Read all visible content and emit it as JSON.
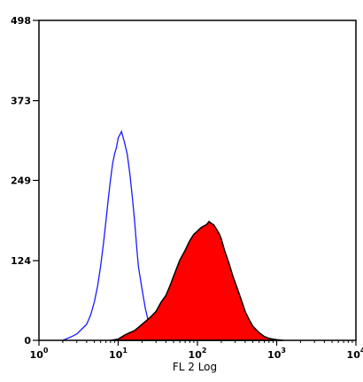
{
  "chart_data": {
    "type": "area",
    "title": "",
    "xlabel": "FL 2 Log",
    "ylabel": "",
    "x_scale": "log",
    "xlim": [
      1,
      10000
    ],
    "ylim": [
      0,
      498
    ],
    "x_ticks": [
      {
        "value": 1,
        "base": "10",
        "exp": "0"
      },
      {
        "value": 10,
        "base": "10",
        "exp": "1"
      },
      {
        "value": 100,
        "base": "10",
        "exp": "2"
      },
      {
        "value": 1000,
        "base": "10",
        "exp": "3"
      },
      {
        "value": 10000,
        "base": "10",
        "exp": "4"
      }
    ],
    "y_ticks": [
      0,
      124,
      249,
      373,
      498
    ],
    "y_tick_labels": [
      "0",
      "124",
      "249",
      "373",
      "498"
    ],
    "grid": false,
    "legend": "none",
    "series": [
      {
        "style": "outline",
        "color": "#1a1aff",
        "x": [
          2.0,
          2.5,
          3.0,
          3.5,
          4.0,
          4.5,
          5.0,
          5.5,
          6.0,
          6.5,
          7.0,
          7.5,
          8.0,
          8.5,
          9.0,
          9.5,
          10.0,
          11.0,
          12.0,
          13.0,
          14.0,
          15.0,
          16.0,
          17.0,
          18.0,
          20.0,
          22.0,
          24.0,
          26.0,
          28.0,
          30.0,
          33.0,
          36.0,
          40.0
        ],
        "y": [
          0,
          5,
          10,
          18,
          25,
          40,
          60,
          85,
          115,
          150,
          185,
          220,
          250,
          275,
          290,
          300,
          315,
          325,
          308,
          290,
          260,
          225,
          190,
          150,
          115,
          80,
          50,
          30,
          18,
          10,
          5,
          3,
          1,
          0
        ]
      },
      {
        "style": "filled",
        "color": "#ff0000",
        "edge_color": "#000000",
        "x": [
          8,
          10,
          12,
          14,
          16,
          18,
          20,
          25,
          30,
          35,
          40,
          45,
          50,
          60,
          70,
          80,
          90,
          100,
          110,
          120,
          130,
          140,
          150,
          160,
          170,
          180,
          190,
          200,
          220,
          250,
          280,
          320,
          360,
          400,
          450,
          500,
          600,
          700,
          800,
          900,
          1000,
          1200
        ],
        "y": [
          0,
          2,
          8,
          12,
          15,
          20,
          25,
          35,
          45,
          60,
          70,
          85,
          100,
          125,
          140,
          155,
          165,
          170,
          175,
          178,
          180,
          185,
          182,
          180,
          175,
          170,
          165,
          158,
          140,
          120,
          100,
          80,
          62,
          45,
          32,
          22,
          12,
          6,
          3,
          2,
          1,
          0
        ]
      }
    ]
  }
}
